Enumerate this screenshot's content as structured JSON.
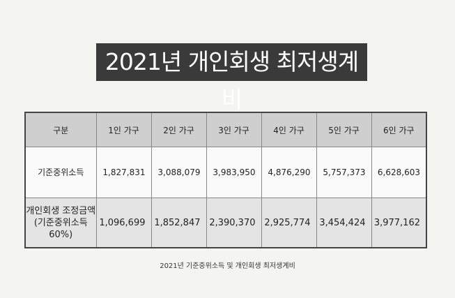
{
  "header": {
    "title": "2021년 개인회생 최저생계비"
  },
  "table": {
    "columns": [
      "구분",
      "1인 가구",
      "2인 가구",
      "3인 가구",
      "4인 가구",
      "5인 가구",
      "6인 가구"
    ],
    "rows": [
      {
        "label": [
          "기준중위소득"
        ],
        "cells": [
          "1,827,831",
          "3,088,079",
          "3,983,950",
          "4,876,290",
          "5,757,373",
          "6,628,603"
        ]
      },
      {
        "label": [
          "개인회생 조정금액",
          "(기준중위소득",
          "60%)"
        ],
        "cells": [
          "1,096,699",
          "1,852,847",
          "2,390,370",
          "2,925,774",
          "3,454,424",
          "3,977,162"
        ]
      }
    ]
  },
  "caption": "2021년 기준중위소득 및 개인회생 최저생계비"
}
